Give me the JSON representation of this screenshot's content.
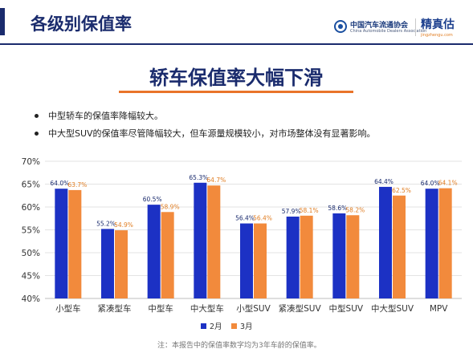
{
  "header": {
    "title": "各级别保值率",
    "association_name_zh": "中国汽车流通协会",
    "association_name_en": "China Automobile Dealers Association",
    "brand_name": "精真估",
    "brand_url": "jingzhengu.com"
  },
  "banner": {
    "title": "轿车保值率大幅下滑"
  },
  "bullets": [
    "中型轿车的保值率降幅较大。",
    "中大型SUV的保值率尽管降幅较大，但车源量规模较小，对市场整体没有显著影响。"
  ],
  "colors": {
    "feb": "#1c31c4",
    "mar": "#f28a3c",
    "navy": "#1a2b6d",
    "accent": "#e9742a"
  },
  "chart_data": {
    "type": "bar",
    "categories": [
      "小型车",
      "紧凑型车",
      "中型车",
      "中大型车",
      "小型SUV",
      "紧凑型SUV",
      "中型SUV",
      "中大型SUV",
      "MPV"
    ],
    "series": [
      {
        "name": "2月",
        "values": [
          64.0,
          55.2,
          60.5,
          65.3,
          56.4,
          57.9,
          58.6,
          64.4,
          64.0
        ]
      },
      {
        "name": "3月",
        "values": [
          63.7,
          54.9,
          58.9,
          64.7,
          56.4,
          58.1,
          58.2,
          62.5,
          64.1
        ]
      }
    ],
    "value_labels": [
      [
        "64.0%",
        "55.2%",
        "60.5%",
        "65.3%",
        "56.4%",
        "57.9%",
        "58.6%",
        "64.4%",
        "64.0%"
      ],
      [
        "63.7%",
        "54.9%",
        "58.9%",
        "64.7%",
        "56.4%",
        "58.1%",
        "58.2%",
        "62.5%",
        "64.1%"
      ]
    ],
    "yticks": [
      "70%",
      "65%",
      "60%",
      "55%",
      "50%",
      "45%",
      "40%"
    ],
    "ytick_values": [
      70,
      65,
      60,
      55,
      50,
      45,
      40
    ],
    "ylim": [
      40,
      70
    ],
    "grid": true,
    "legend_position": "bottom-center"
  },
  "footnote": "注：本报告中的保值率数字均为3年车龄的保值率。"
}
